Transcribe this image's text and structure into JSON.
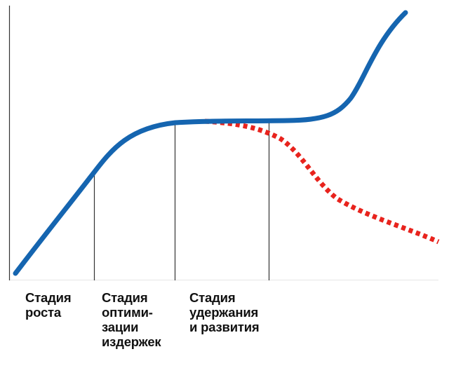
{
  "diagram": {
    "stages": [
      {
        "lines": [
          "Стадия",
          "роста"
        ]
      },
      {
        "lines": [
          "Стадия",
          "оптими-",
          "зации",
          "издержек"
        ]
      },
      {
        "lines": [
          "Стадия",
          "удержания",
          "и развития"
        ]
      }
    ],
    "colors": {
      "main_curve": "#1565b0",
      "decline_curve": "#e8231d",
      "axes": "#333333"
    },
    "curves": {
      "main": "solid",
      "decline": "dotted"
    }
  }
}
